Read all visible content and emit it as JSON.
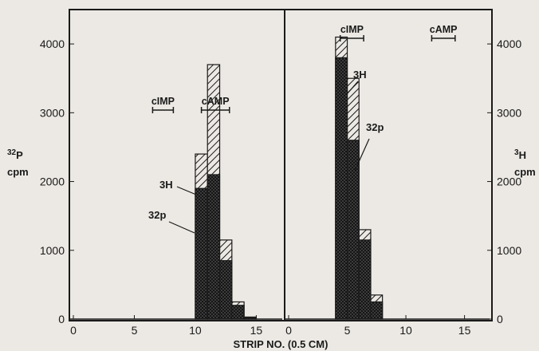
{
  "chart_data": [
    {
      "type": "bar",
      "panel": "left",
      "x_range": [
        0,
        17
      ],
      "x_ticks": [
        "0",
        "5",
        "10",
        "15"
      ],
      "ylim": [
        0,
        4500
      ],
      "y_ticks": [
        "0",
        "1000",
        "2000",
        "3000",
        "4000"
      ],
      "ylabel": "32p cpm",
      "markers": [
        {
          "label": "cIMP",
          "x_from": 6.5,
          "x_to": 8.2
        },
        {
          "label": "cAMP",
          "x_from": 10.5,
          "x_to": 12.8
        }
      ],
      "series": [
        {
          "name": "3H",
          "pattern": "hatched",
          "x": [
            10.5,
            11.5,
            12.5,
            13.5,
            14.5
          ],
          "values": [
            2400,
            3700,
            1150,
            250,
            30
          ]
        },
        {
          "name": "32p",
          "pattern": "crosshatched",
          "x": [
            10.5,
            11.5,
            12.5,
            13.5,
            14.5
          ],
          "values": [
            1900,
            2100,
            850,
            200,
            20
          ]
        }
      ],
      "annotations": [
        "3H",
        "32p"
      ]
    },
    {
      "type": "bar",
      "panel": "right",
      "x_range": [
        0,
        17
      ],
      "x_ticks": [
        "0",
        "5",
        "10",
        "15"
      ],
      "ylim": [
        0,
        4500
      ],
      "y_ticks": [
        "0",
        "1000",
        "2000",
        "3000",
        "4000"
      ],
      "ylabel": "3H cpm",
      "markers": [
        {
          "label": "cIMP",
          "x_from": 4.4,
          "x_to": 6.4
        },
        {
          "label": "cAMP",
          "x_from": 12.2,
          "x_to": 14.2
        }
      ],
      "series": [
        {
          "name": "3H",
          "pattern": "hatched",
          "x": [
            4.5,
            5.5,
            6.5,
            7.5
          ],
          "values": [
            4100,
            3500,
            1300,
            350
          ]
        },
        {
          "name": "32p",
          "pattern": "crosshatched",
          "x": [
            4.5,
            5.5,
            6.5,
            7.5
          ],
          "values": [
            3800,
            2600,
            1150,
            250
          ]
        }
      ],
      "annotations": [
        "3H",
        "32p"
      ]
    }
  ],
  "xlabel": "STRIP NO. (0.5 CM)",
  "left_ylabel": {
    "num_super": "32",
    "num_main": "P",
    "unit": "cpm"
  },
  "right_ylabel": {
    "num_super": "3",
    "num_main": "H",
    "unit": "cpm"
  },
  "colors": {
    "ink": "#1a1a1a",
    "paper": "#ece9e4"
  }
}
